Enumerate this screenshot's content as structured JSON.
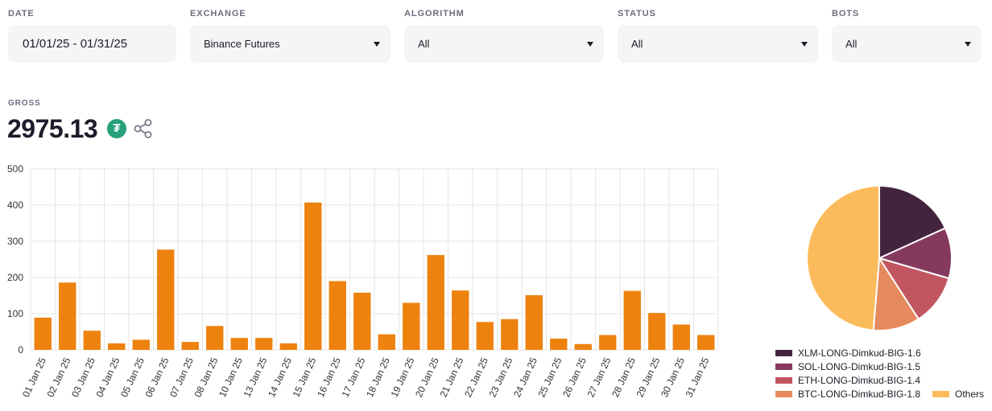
{
  "filters": {
    "date": {
      "label": "DATE",
      "value": "01/01/25 - 01/31/25"
    },
    "exchange": {
      "label": "EXCHANGE",
      "value": "Binance Futures"
    },
    "algorithm": {
      "label": "ALGORITHM",
      "value": "All"
    },
    "status": {
      "label": "STATUS",
      "value": "All"
    },
    "bots": {
      "label": "BOTS",
      "value": "All"
    }
  },
  "gross": {
    "label": "GROSS",
    "value": "2975.13",
    "currency_icon": "tether-usdt-icon",
    "share_icon": "share-icon"
  },
  "colors": {
    "bar": "#ee820e",
    "grid": "#e6e6e6",
    "pie": [
      "#43243f",
      "#84395d",
      "#c25660",
      "#e58a5e",
      "#fcbb5b"
    ]
  },
  "chart_data": [
    {
      "type": "bar",
      "categories": [
        "01 Jan 25",
        "02 Jan 25",
        "03 Jan 25",
        "04 Jan 25",
        "05 Jan 25",
        "06 Jan 25",
        "07 Jan 25",
        "08 Jan 25",
        "10 Jan 25",
        "13 Jan 25",
        "14 Jan 25",
        "15 Jan 25",
        "16 Jan 25",
        "17 Jan 25",
        "18 Jan 25",
        "19 Jan 25",
        "20 Jan 25",
        "21 Jan 25",
        "22 Jan 25",
        "23 Jan 25",
        "24 Jan 25",
        "25 Jan 25",
        "26 Jan 25",
        "27 Jan 25",
        "28 Jan 25",
        "29 Jan 25",
        "30 Jan 25",
        "31 Jan 25"
      ],
      "values": [
        89,
        186,
        53,
        18,
        28,
        277,
        22,
        66,
        33,
        33,
        18,
        407,
        190,
        158,
        43,
        130,
        262,
        164,
        77,
        85,
        151,
        31,
        16,
        41,
        163,
        102,
        70,
        41
      ],
      "ylim": [
        0,
        500
      ],
      "yticks": [
        0,
        100,
        200,
        300,
        400,
        500
      ],
      "grid": true
    },
    {
      "type": "pie",
      "labels": [
        "XLM-LONG-Dimkud-BIG-1.6",
        "SOL-LONG-Dimkud-BIG-1.5",
        "ETH-LONG-Dimkud-BIG-1.4",
        "BTC-LONG-Dimkud-BIG-1.8",
        "Others"
      ],
      "values": [
        18.2,
        11.3,
        11.4,
        10.4,
        48.7
      ],
      "legend": "bottom"
    }
  ]
}
